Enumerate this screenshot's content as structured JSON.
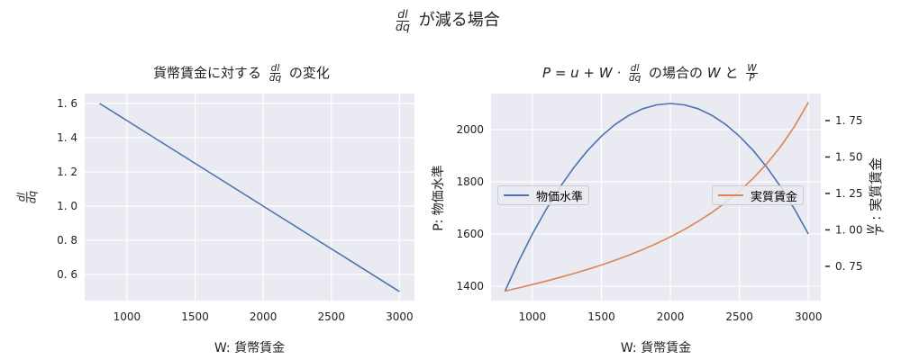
{
  "suptitle": {
    "frac_num": "dl",
    "frac_den": "dq",
    "suffix": "が減る場合"
  },
  "chart_data": [
    {
      "type": "line",
      "title": {
        "prefix": "貨幣賃金に対する",
        "frac_num": "dl",
        "frac_den": "dq",
        "suffix": "の変化"
      },
      "xlabel": "W: 貨幣賃金",
      "ylabel": {
        "frac_num": "dl",
        "frac_den": "dq"
      },
      "xlim": [
        690,
        3110
      ],
      "ylim": [
        0.447,
        1.658
      ],
      "xticks": [
        1000,
        1500,
        2000,
        2500,
        3000
      ],
      "yticks": [
        0.6,
        0.8,
        1.0,
        1.2,
        1.4,
        1.6
      ],
      "ytick_labels": [
        "0. 6",
        "0. 8",
        "1. 0",
        "1. 2",
        "1. 4",
        "1. 6"
      ],
      "grid": true,
      "x": [
        800,
        900,
        1000,
        1100,
        1200,
        1300,
        1400,
        1500,
        1600,
        1700,
        1800,
        1900,
        2000,
        2100,
        2200,
        2300,
        2400,
        2500,
        2600,
        2700,
        2800,
        2900,
        3000
      ],
      "series": [
        {
          "color": "#4c72b0",
          "values": [
            1.6,
            1.55,
            1.5,
            1.45,
            1.4,
            1.35,
            1.3,
            1.25,
            1.2,
            1.15,
            1.1,
            1.05,
            1.0,
            0.95,
            0.9,
            0.85,
            0.8,
            0.75,
            0.7,
            0.65,
            0.6,
            0.55,
            0.5
          ]
        }
      ]
    },
    {
      "type": "line",
      "title": {
        "prefix": "P = u + W ·",
        "frac_num": "dl",
        "frac_den": "dq",
        "mid": "の場合の",
        "w": "W",
        "and": "と",
        "frac2_num": "W",
        "frac2_den": "P"
      },
      "xlabel": "W: 貨幣賃金",
      "ylabel": "P: 物価水準",
      "ylabel_right": {
        "frac_num": "W",
        "frac_den": "P",
        "suffix": ": 実質賃金"
      },
      "xlim": [
        700,
        3090
      ],
      "ylim": [
        1345,
        2138
      ],
      "ylim_right": [
        0.515,
        1.935
      ],
      "xticks": [
        1000,
        1500,
        2000,
        2500,
        3000
      ],
      "yticks": [
        1400,
        1600,
        1800,
        2000
      ],
      "yticks_right": [
        0.75,
        1.0,
        1.25,
        1.5,
        1.75
      ],
      "ytick_labels_right": [
        "0. 75",
        "1. 00",
        "1. 25",
        "1. 50",
        "1. 75"
      ],
      "grid": true,
      "legend_left": "middle-left",
      "legend_right": "middle-right",
      "x": [
        800,
        900,
        1000,
        1100,
        1200,
        1300,
        1400,
        1500,
        1600,
        1700,
        1800,
        1900,
        2000,
        2100,
        2200,
        2300,
        2400,
        2500,
        2600,
        2700,
        2800,
        2900,
        3000
      ],
      "series": [
        {
          "name": "物価水準",
          "axis": "left",
          "color": "#4c72b0",
          "values": [
            1380,
            1495,
            1600,
            1695,
            1780,
            1855,
            1920,
            1975,
            2020,
            2055,
            2080,
            2095,
            2100,
            2095,
            2080,
            2055,
            2020,
            1975,
            1920,
            1855,
            1780,
            1695,
            1600
          ]
        },
        {
          "name": "実質賃金",
          "axis": "right",
          "color": "#dd8452",
          "values": [
            0.58,
            0.602,
            0.625,
            0.649,
            0.674,
            0.701,
            0.729,
            0.759,
            0.792,
            0.827,
            0.865,
            0.907,
            0.952,
            1.002,
            1.058,
            1.119,
            1.188,
            1.266,
            1.354,
            1.456,
            1.573,
            1.711,
            1.875
          ]
        }
      ]
    }
  ]
}
